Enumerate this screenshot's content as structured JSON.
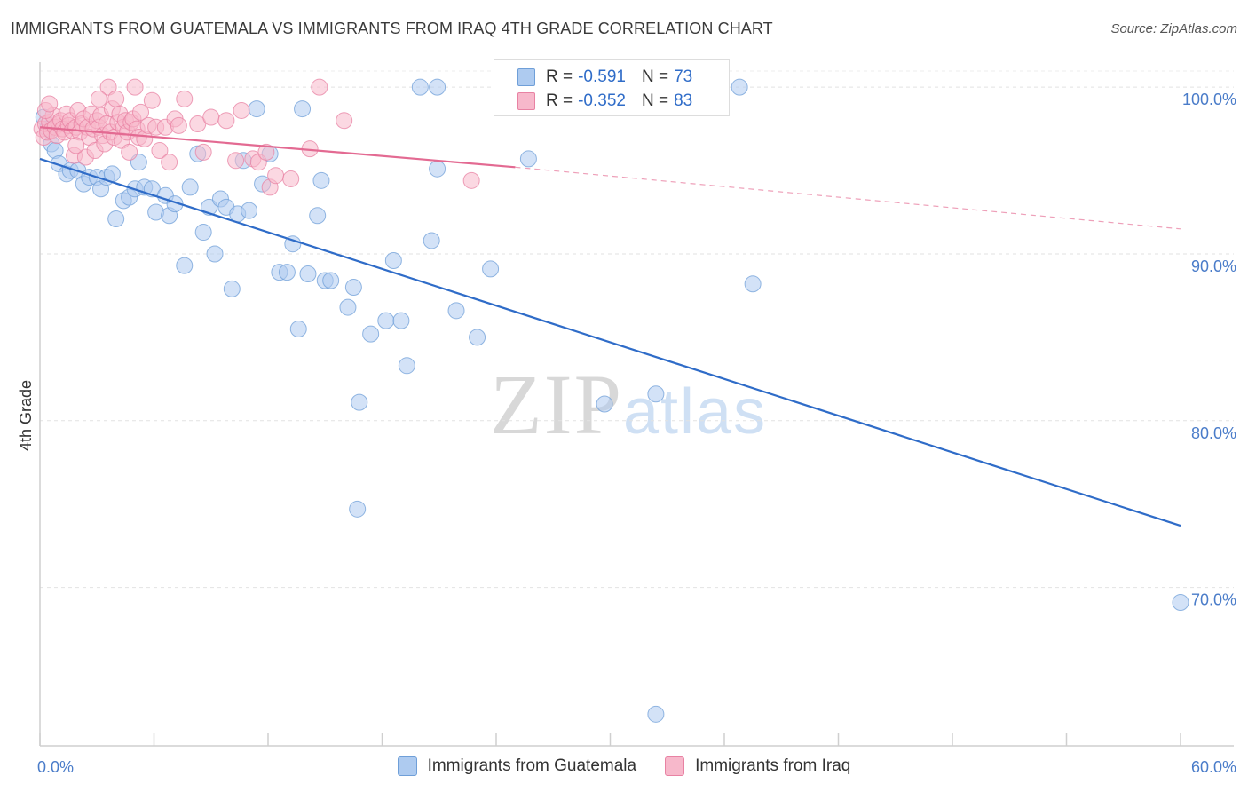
{
  "title": "IMMIGRANTS FROM GUATEMALA VS IMMIGRANTS FROM IRAQ 4TH GRADE CORRELATION CHART",
  "source": "Source: ZipAtlas.com",
  "watermark": {
    "zip": "ZIP",
    "atlas": "atlas"
  },
  "legend_top": [
    {
      "r_label": "R =",
      "r_value": "-0.591",
      "n_label": "N =",
      "n_value": "73",
      "color": "#aecbf0",
      "border": "#6f9fd8"
    },
    {
      "r_label": "R =",
      "r_value": "-0.352",
      "n_label": "N =",
      "n_value": "83",
      "color": "#f7b8cb",
      "border": "#e882a3"
    }
  ],
  "legend_bottom": [
    {
      "label": "Immigrants from Guatemala",
      "color": "#aecbf0",
      "border": "#6f9fd8"
    },
    {
      "label": "Immigrants from Iraq",
      "color": "#f7b8cb",
      "border": "#e882a3"
    }
  ],
  "chart_data": {
    "type": "scatter",
    "title": "IMMIGRANTS FROM GUATEMALA VS IMMIGRANTS FROM IRAQ 4TH GRADE CORRELATION CHART",
    "xlabel": "",
    "ylabel": "4th Grade",
    "xlim": [
      0,
      60
    ],
    "ylim": [
      60.5,
      101.5
    ],
    "x_tick_labels": [
      "0.0%",
      "60.0%"
    ],
    "y_ticks": [
      70,
      80,
      90,
      100
    ],
    "y_tick_labels": [
      "70.0%",
      "80.0%",
      "90.0%",
      "100.0%"
    ],
    "grid": true,
    "legend_position": "top-center",
    "series": [
      {
        "name": "Immigrants from Guatemala",
        "color": "#6f9fd8",
        "fill": "#aecbf0",
        "trend": {
          "x": [
            0,
            60
          ],
          "y": [
            95.7,
            73.7
          ],
          "dashed_from": null
        },
        "points": [
          [
            0.2,
            98.2
          ],
          [
            0.4,
            97.5
          ],
          [
            0.6,
            96.6
          ],
          [
            0.8,
            96.2
          ],
          [
            1.0,
            95.4
          ],
          [
            1.4,
            94.8
          ],
          [
            1.6,
            95.0
          ],
          [
            2.0,
            95.0
          ],
          [
            2.3,
            94.2
          ],
          [
            2.6,
            94.6
          ],
          [
            3.0,
            94.6
          ],
          [
            3.2,
            93.9
          ],
          [
            3.5,
            94.6
          ],
          [
            3.8,
            94.8
          ],
          [
            4.0,
            92.1
          ],
          [
            4.4,
            93.2
          ],
          [
            4.7,
            93.4
          ],
          [
            5.0,
            93.9
          ],
          [
            5.2,
            95.5
          ],
          [
            5.5,
            94.0
          ],
          [
            5.9,
            93.9
          ],
          [
            6.1,
            92.5
          ],
          [
            6.6,
            93.5
          ],
          [
            6.8,
            92.3
          ],
          [
            7.1,
            93.0
          ],
          [
            7.6,
            89.3
          ],
          [
            7.9,
            94.0
          ],
          [
            8.3,
            96.0
          ],
          [
            8.6,
            91.3
          ],
          [
            8.9,
            92.8
          ],
          [
            9.2,
            90.0
          ],
          [
            9.5,
            93.3
          ],
          [
            9.8,
            92.8
          ],
          [
            10.1,
            87.9
          ],
          [
            10.4,
            92.4
          ],
          [
            10.7,
            95.6
          ],
          [
            11.0,
            92.6
          ],
          [
            11.4,
            98.7
          ],
          [
            11.7,
            94.2
          ],
          [
            12.1,
            96.0
          ],
          [
            12.6,
            88.9
          ],
          [
            13.0,
            88.9
          ],
          [
            13.3,
            90.6
          ],
          [
            13.6,
            85.5
          ],
          [
            13.8,
            98.7
          ],
          [
            14.1,
            88.8
          ],
          [
            14.6,
            92.3
          ],
          [
            14.8,
            94.4
          ],
          [
            15.0,
            88.4
          ],
          [
            15.3,
            88.4
          ],
          [
            16.2,
            86.8
          ],
          [
            16.5,
            88.0
          ],
          [
            16.8,
            81.1
          ],
          [
            17.4,
            85.2
          ],
          [
            18.2,
            86.0
          ],
          [
            18.6,
            89.6
          ],
          [
            19.0,
            86.0
          ],
          [
            19.3,
            83.3
          ],
          [
            20.0,
            100.0
          ],
          [
            20.6,
            90.8
          ],
          [
            20.9,
            95.1
          ],
          [
            20.9,
            100.0
          ],
          [
            21.9,
            86.6
          ],
          [
            23.0,
            85.0
          ],
          [
            23.7,
            89.1
          ],
          [
            25.7,
            95.7
          ],
          [
            29.7,
            81.0
          ],
          [
            32.4,
            81.6
          ],
          [
            32.4,
            62.4
          ],
          [
            36.8,
            100.0
          ],
          [
            37.5,
            88.2
          ],
          [
            60.0,
            69.1
          ],
          [
            16.7,
            74.7
          ]
        ]
      },
      {
        "name": "Immigrants from Iraq",
        "color": "#e882a3",
        "fill": "#f7b8cb",
        "trend": {
          "x": [
            0,
            25
          ],
          "y": [
            97.6,
            95.2
          ],
          "dashed_to_x": 60,
          "dashed_to_y": 91.5
        },
        "points": [
          [
            0.1,
            97.5
          ],
          [
            0.2,
            97.0
          ],
          [
            0.3,
            97.8
          ],
          [
            0.4,
            97.3
          ],
          [
            0.5,
            97.9
          ],
          [
            0.6,
            97.4
          ],
          [
            0.7,
            98.3
          ],
          [
            0.8,
            97.6
          ],
          [
            0.9,
            97.1
          ],
          [
            1.0,
            97.8
          ],
          [
            1.1,
            98.0
          ],
          [
            1.2,
            97.5
          ],
          [
            1.3,
            97.3
          ],
          [
            1.4,
            98.4
          ],
          [
            1.5,
            97.7
          ],
          [
            1.6,
            98.0
          ],
          [
            1.7,
            97.4
          ],
          [
            1.8,
            95.9
          ],
          [
            1.9,
            97.6
          ],
          [
            2.0,
            98.6
          ],
          [
            2.1,
            97.3
          ],
          [
            2.2,
            97.8
          ],
          [
            2.3,
            98.1
          ],
          [
            2.4,
            95.8
          ],
          [
            2.5,
            97.6
          ],
          [
            2.6,
            97.0
          ],
          [
            2.7,
            98.4
          ],
          [
            2.8,
            97.5
          ],
          [
            2.9,
            96.2
          ],
          [
            3.0,
            98.0
          ],
          [
            3.1,
            97.6
          ],
          [
            3.2,
            98.3
          ],
          [
            3.3,
            97.1
          ],
          [
            3.4,
            96.6
          ],
          [
            3.5,
            97.8
          ],
          [
            3.6,
            100.0
          ],
          [
            3.7,
            97.3
          ],
          [
            3.8,
            98.7
          ],
          [
            3.9,
            97.0
          ],
          [
            4.0,
            99.3
          ],
          [
            4.1,
            97.9
          ],
          [
            4.2,
            98.4
          ],
          [
            4.3,
            96.8
          ],
          [
            4.4,
            97.6
          ],
          [
            4.5,
            98.0
          ],
          [
            4.6,
            97.3
          ],
          [
            4.7,
            96.1
          ],
          [
            4.8,
            97.9
          ],
          [
            4.9,
            98.1
          ],
          [
            5.0,
            100.0
          ],
          [
            5.1,
            97.5
          ],
          [
            5.2,
            97.0
          ],
          [
            5.3,
            98.5
          ],
          [
            5.5,
            96.9
          ],
          [
            5.7,
            97.7
          ],
          [
            5.9,
            99.2
          ],
          [
            6.1,
            97.6
          ],
          [
            6.3,
            96.2
          ],
          [
            6.6,
            97.6
          ],
          [
            6.8,
            95.5
          ],
          [
            7.1,
            98.1
          ],
          [
            7.3,
            97.7
          ],
          [
            7.6,
            99.3
          ],
          [
            8.3,
            97.8
          ],
          [
            8.6,
            96.1
          ],
          [
            9.0,
            98.2
          ],
          [
            9.8,
            98.0
          ],
          [
            10.3,
            95.6
          ],
          [
            10.6,
            98.6
          ],
          [
            11.2,
            95.7
          ],
          [
            11.5,
            95.5
          ],
          [
            11.9,
            96.1
          ],
          [
            12.1,
            94.0
          ],
          [
            12.4,
            94.7
          ],
          [
            13.2,
            94.5
          ],
          [
            14.2,
            96.3
          ],
          [
            14.7,
            100.0
          ],
          [
            16.0,
            98.0
          ],
          [
            22.7,
            94.4
          ],
          [
            0.3,
            98.6
          ],
          [
            0.5,
            99.0
          ],
          [
            1.9,
            96.5
          ],
          [
            3.1,
            99.3
          ]
        ]
      }
    ]
  }
}
